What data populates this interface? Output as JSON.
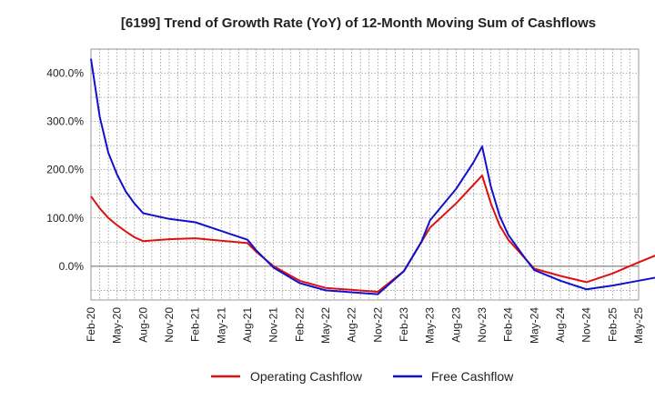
{
  "chart_data": {
    "type": "line",
    "title": "[6199]  Trend of Growth Rate (YoY) of 12-Month Moving Sum of Cashflows",
    "xlabel": "",
    "ylabel": "",
    "ylim": [
      -70,
      450
    ],
    "y_ticks": [
      {
        "value": 0,
        "label": "0.0%"
      },
      {
        "value": 100,
        "label": "100.0%"
      },
      {
        "value": 200,
        "label": "200.0%"
      },
      {
        "value": 300,
        "label": "300.0%"
      },
      {
        "value": 400,
        "label": "400.0%"
      }
    ],
    "x_ticks": [
      "Feb-20",
      "May-20",
      "Aug-20",
      "Nov-20",
      "Feb-21",
      "May-21",
      "Aug-21",
      "Nov-21",
      "Feb-22",
      "May-22",
      "Aug-22",
      "Nov-22",
      "Feb-23",
      "May-23",
      "Aug-23",
      "Nov-23",
      "Feb-24",
      "May-24",
      "Aug-24",
      "Nov-24",
      "Feb-25",
      "May-25"
    ],
    "grid": true,
    "legend_position": "bottom",
    "series": [
      {
        "name": "Operating Cashflow",
        "color": "#dd1111",
        "points": [
          [
            0,
            145
          ],
          [
            1,
            120
          ],
          [
            2,
            100
          ],
          [
            3,
            85
          ],
          [
            4,
            72
          ],
          [
            5,
            60
          ],
          [
            6,
            52
          ],
          [
            9,
            56
          ],
          [
            12,
            58
          ],
          [
            18,
            48
          ],
          [
            19,
            30
          ],
          [
            21,
            0
          ],
          [
            24,
            -30
          ],
          [
            27,
            -45
          ],
          [
            33,
            -53
          ],
          [
            36,
            -10
          ],
          [
            39,
            80
          ],
          [
            42,
            130
          ],
          [
            45,
            188
          ],
          [
            46,
            130
          ],
          [
            47,
            85
          ],
          [
            48,
            55
          ],
          [
            50,
            15
          ],
          [
            51,
            -5
          ],
          [
            54,
            -20
          ],
          [
            57,
            -33
          ],
          [
            60,
            -15
          ],
          [
            63,
            8
          ],
          [
            66,
            30
          ]
        ]
      },
      {
        "name": "Free Cashflow",
        "color": "#1111cc",
        "points": [
          [
            0,
            430
          ],
          [
            1,
            310
          ],
          [
            2,
            235
          ],
          [
            3,
            190
          ],
          [
            4,
            155
          ],
          [
            5,
            130
          ],
          [
            6,
            110
          ],
          [
            9,
            98
          ],
          [
            12,
            91
          ],
          [
            15,
            73
          ],
          [
            18,
            55
          ],
          [
            19,
            33
          ],
          [
            21,
            -3
          ],
          [
            24,
            -35
          ],
          [
            27,
            -50
          ],
          [
            33,
            -58
          ],
          [
            36,
            -10
          ],
          [
            38,
            50
          ],
          [
            39,
            95
          ],
          [
            42,
            160
          ],
          [
            44,
            215
          ],
          [
            45,
            248
          ],
          [
            46,
            165
          ],
          [
            47,
            105
          ],
          [
            48,
            65
          ],
          [
            50,
            15
          ],
          [
            51,
            -8
          ],
          [
            54,
            -30
          ],
          [
            57,
            -48
          ],
          [
            60,
            -40
          ],
          [
            63,
            -30
          ],
          [
            66,
            -20
          ]
        ]
      }
    ]
  }
}
